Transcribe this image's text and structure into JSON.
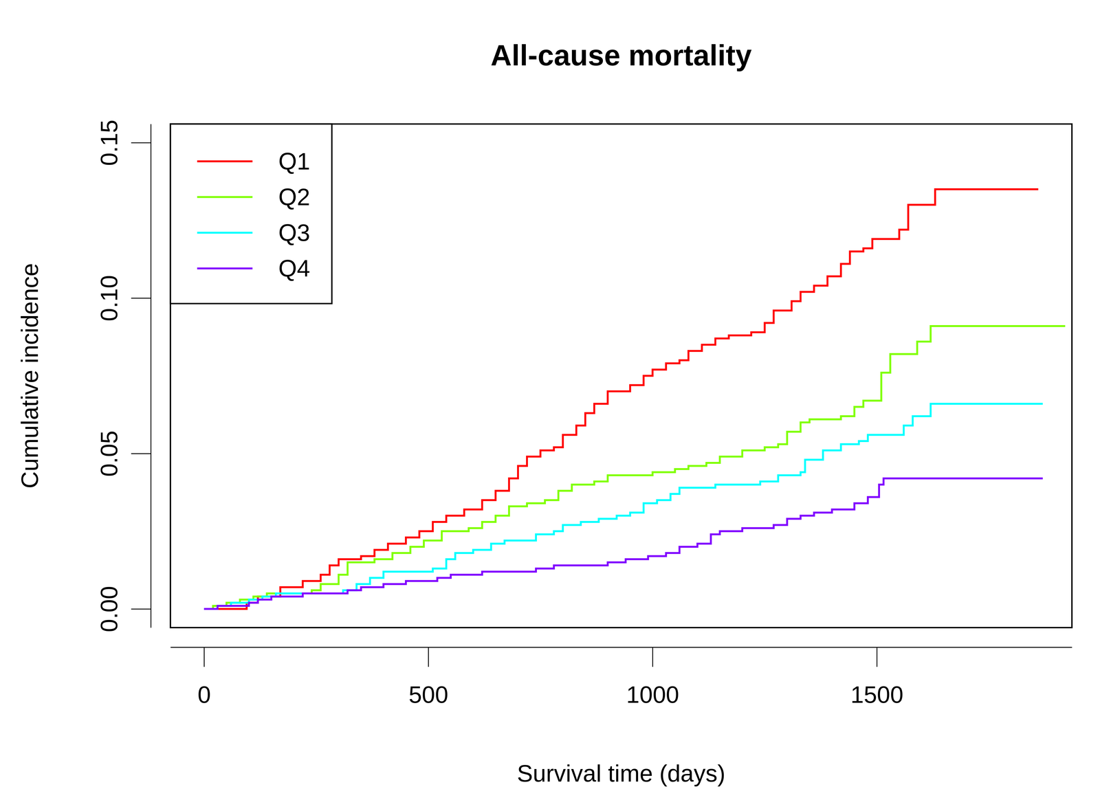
{
  "chart_data": {
    "type": "line",
    "title": "All-cause mortality",
    "x_label": "Survival time (days)",
    "y_label": "Cumulative incidence",
    "line_style": "step",
    "legend": "top-left",
    "grid": false,
    "xlim": [
      -75,
      1935
    ],
    "ylim": [
      -0.006,
      0.156
    ],
    "xticks": [
      0,
      500,
      1000,
      1500
    ],
    "yticks": [
      {
        "value": 0,
        "label": "0.00"
      },
      0.05,
      {
        "value": 0.1,
        "label": "0.10"
      },
      0.15
    ],
    "series": [
      {
        "name": "Q1",
        "color": "#ff0000",
        "x": [
          0,
          95,
          120,
          170,
          220,
          260,
          280,
          300,
          350,
          380,
          410,
          450,
          480,
          510,
          540,
          580,
          620,
          650,
          680,
          700,
          720,
          750,
          780,
          800,
          830,
          850,
          870,
          900,
          950,
          980,
          1000,
          1030,
          1060,
          1080,
          1110,
          1140,
          1170,
          1220,
          1250,
          1270,
          1310,
          1330,
          1360,
          1390,
          1420,
          1440,
          1470,
          1490,
          1550,
          1570,
          1630,
          1860
        ],
        "values": [
          0,
          0.002,
          0.004,
          0.007,
          0.009,
          0.011,
          0.014,
          0.016,
          0.017,
          0.019,
          0.021,
          0.023,
          0.025,
          0.028,
          0.03,
          0.032,
          0.035,
          0.038,
          0.042,
          0.046,
          0.049,
          0.051,
          0.052,
          0.056,
          0.059,
          0.063,
          0.066,
          0.07,
          0.072,
          0.075,
          0.077,
          0.079,
          0.08,
          0.083,
          0.085,
          0.087,
          0.088,
          0.089,
          0.092,
          0.096,
          0.099,
          0.102,
          0.104,
          0.107,
          0.111,
          0.115,
          0.116,
          0.119,
          0.122,
          0.13,
          0.135,
          0.135
        ]
      },
      {
        "name": "Q2",
        "color": "#80ff00",
        "x": [
          0,
          20,
          50,
          80,
          110,
          140,
          240,
          260,
          300,
          320,
          380,
          420,
          460,
          490,
          530,
          590,
          620,
          650,
          680,
          720,
          760,
          790,
          820,
          870,
          900,
          1000,
          1050,
          1080,
          1120,
          1150,
          1200,
          1250,
          1280,
          1300,
          1330,
          1350,
          1420,
          1450,
          1470,
          1510,
          1530,
          1590,
          1620,
          1920
        ],
        "values": [
          0,
          0.001,
          0.002,
          0.003,
          0.004,
          0.005,
          0.006,
          0.008,
          0.011,
          0.015,
          0.016,
          0.018,
          0.02,
          0.022,
          0.025,
          0.026,
          0.028,
          0.03,
          0.033,
          0.034,
          0.035,
          0.038,
          0.04,
          0.041,
          0.043,
          0.044,
          0.045,
          0.046,
          0.047,
          0.049,
          0.051,
          0.052,
          0.053,
          0.057,
          0.06,
          0.061,
          0.062,
          0.065,
          0.067,
          0.076,
          0.082,
          0.086,
          0.091,
          0.091
        ]
      },
      {
        "name": "Q3",
        "color": "#00ffff",
        "x": [
          0,
          30,
          60,
          100,
          130,
          160,
          310,
          340,
          370,
          400,
          510,
          540,
          560,
          600,
          640,
          670,
          740,
          780,
          800,
          840,
          880,
          920,
          950,
          980,
          1010,
          1040,
          1060,
          1140,
          1240,
          1280,
          1330,
          1340,
          1380,
          1420,
          1460,
          1480,
          1560,
          1580,
          1620,
          1870
        ],
        "values": [
          0,
          0.001,
          0.002,
          0.003,
          0.004,
          0.005,
          0.006,
          0.008,
          0.01,
          0.012,
          0.013,
          0.016,
          0.018,
          0.019,
          0.021,
          0.022,
          0.024,
          0.025,
          0.027,
          0.028,
          0.029,
          0.03,
          0.031,
          0.034,
          0.035,
          0.037,
          0.039,
          0.04,
          0.041,
          0.043,
          0.044,
          0.048,
          0.051,
          0.053,
          0.054,
          0.056,
          0.059,
          0.062,
          0.066,
          0.066
        ]
      },
      {
        "name": "Q4",
        "color": "#8000ff",
        "x": [
          0,
          30,
          100,
          120,
          150,
          220,
          320,
          350,
          400,
          450,
          520,
          550,
          620,
          740,
          780,
          900,
          940,
          990,
          1030,
          1060,
          1100,
          1130,
          1150,
          1200,
          1270,
          1300,
          1330,
          1360,
          1400,
          1450,
          1480,
          1505,
          1515,
          1870
        ],
        "values": [
          0,
          0.001,
          0.002,
          0.003,
          0.004,
          0.005,
          0.006,
          0.007,
          0.008,
          0.009,
          0.01,
          0.011,
          0.012,
          0.013,
          0.014,
          0.015,
          0.016,
          0.017,
          0.018,
          0.02,
          0.021,
          0.024,
          0.025,
          0.026,
          0.027,
          0.029,
          0.03,
          0.031,
          0.032,
          0.034,
          0.036,
          0.04,
          0.042,
          0.042
        ]
      }
    ]
  }
}
